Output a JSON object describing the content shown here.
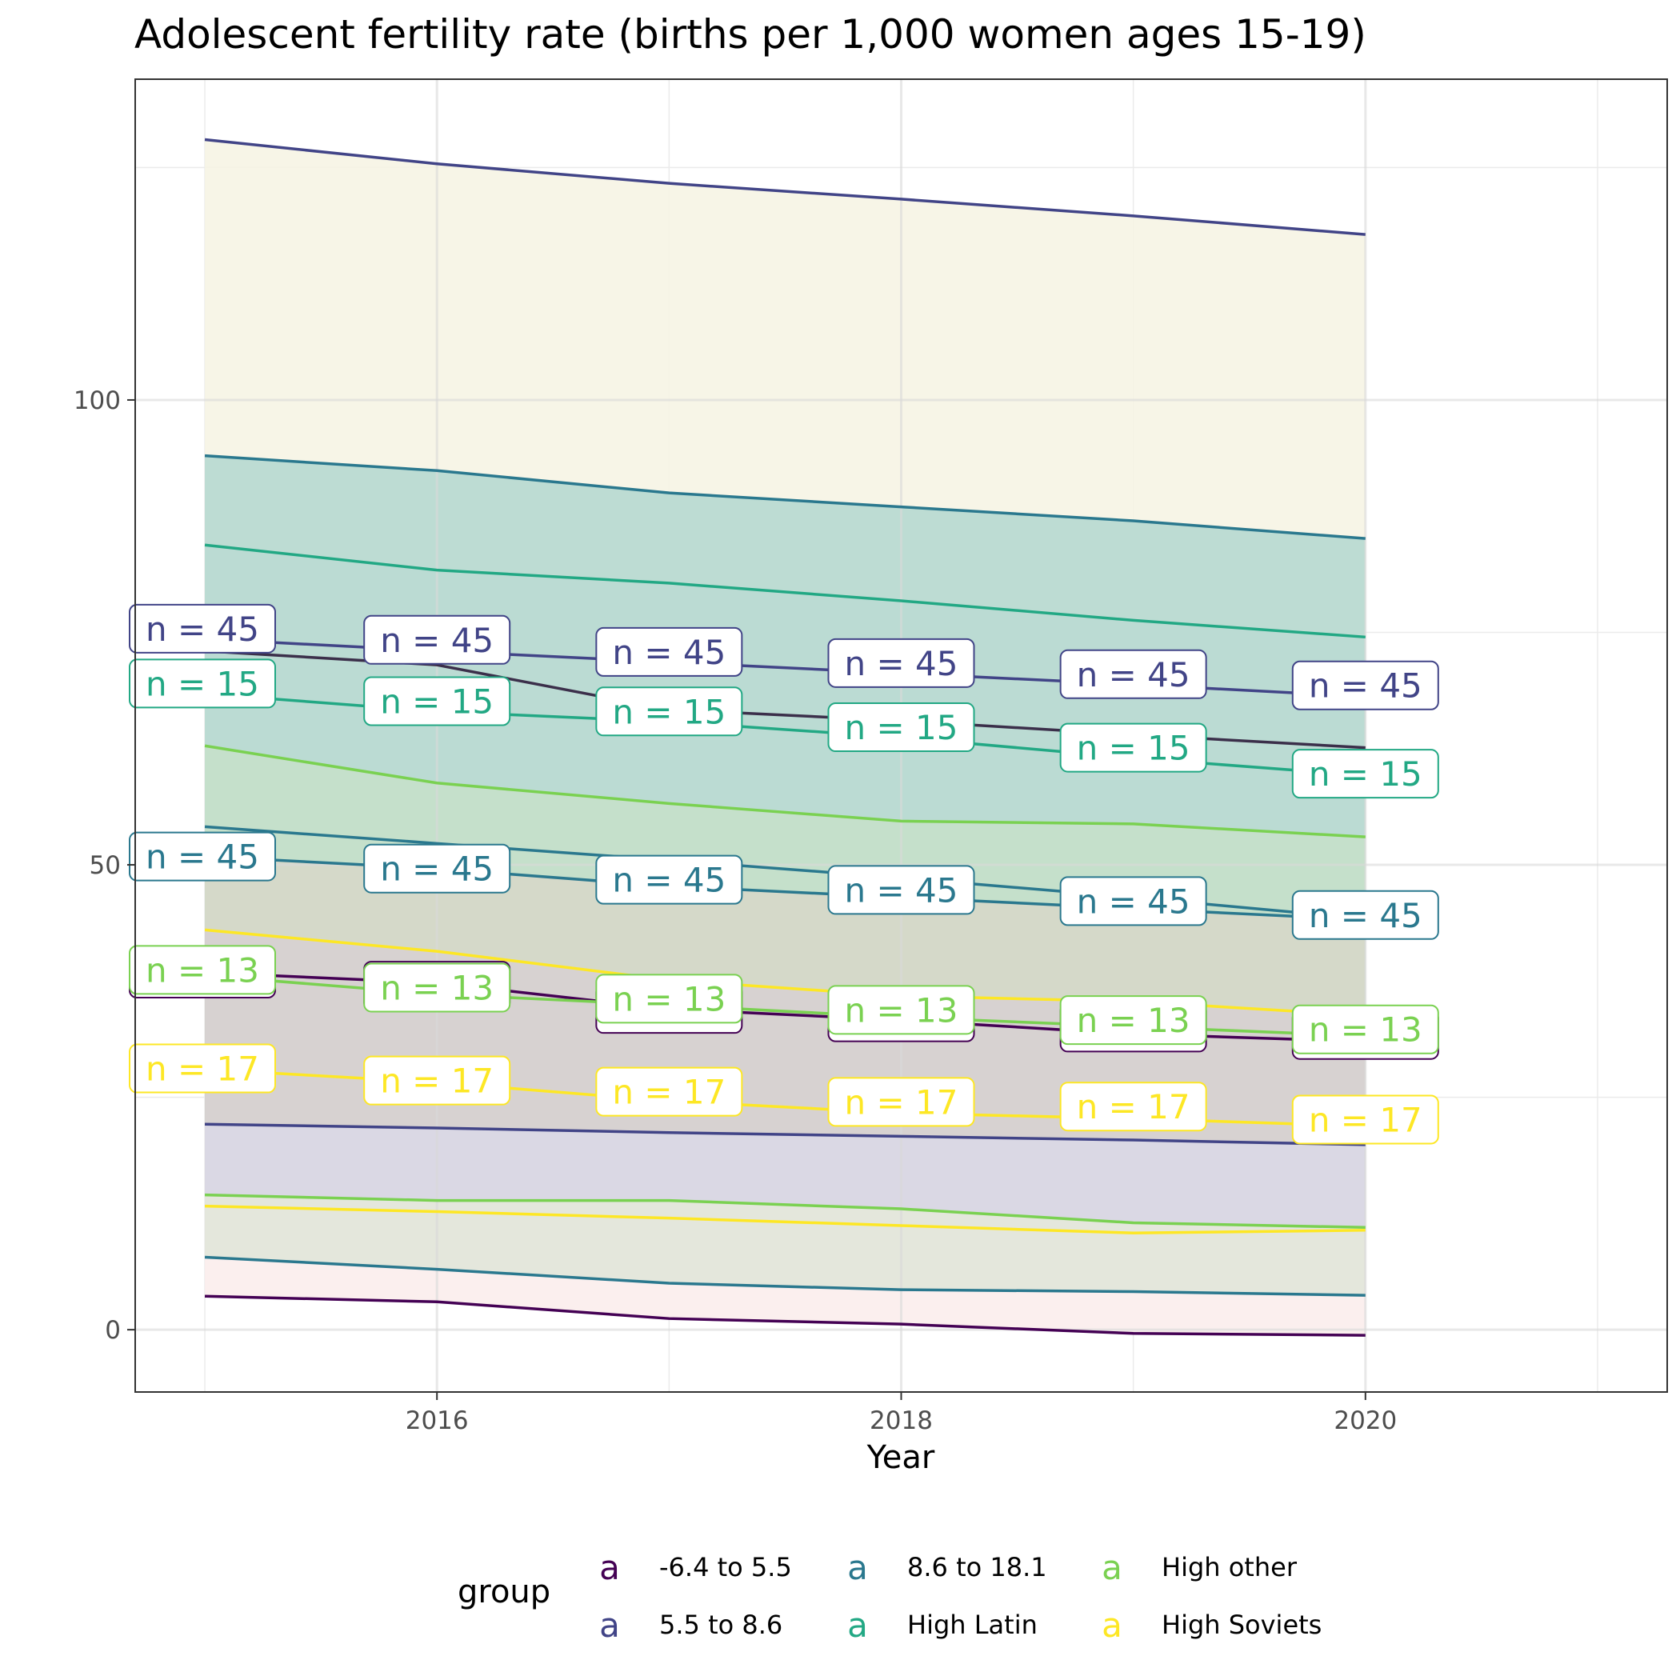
{
  "chart_data": {
    "type": "area",
    "title": "Adolescent fertility rate (births per 1,000 women ages 15-19)",
    "xlabel": "Year",
    "ylabel": "",
    "xlim": [
      2014.7,
      2021.3
    ],
    "ylim": [
      -6.7,
      134.5
    ],
    "x_ticks": [
      2016,
      2018,
      2020
    ],
    "y_ticks": [
      0,
      50,
      100
    ],
    "x": [
      2015,
      2016,
      2017,
      2018,
      2019,
      2020
    ],
    "grid": true,
    "legend": {
      "title": "group",
      "position": "bottom",
      "key_glyph": "a",
      "entries": [
        {
          "label": "-6.4 to 5.5",
          "color": "#440154"
        },
        {
          "label": "5.5 to 8.6",
          "color": "#414487"
        },
        {
          "label": "8.6 to 18.1",
          "color": "#2A788E"
        },
        {
          "label": "High Latin",
          "color": "#22A884"
        },
        {
          "label": "High other",
          "color": "#7AD151"
        },
        {
          "label": "High Soviets",
          "color": "#FDE725"
        }
      ]
    },
    "bands": [
      {
        "group": "5.5 to 8.6",
        "fill": "#f6f4e4",
        "upper": "s2_upper",
        "lower": "s1_lower"
      },
      {
        "group": "8.6 to 18.1",
        "fill": "#dfeed6",
        "upper": "s3_upper",
        "lower": "s1_lower"
      },
      {
        "group": "High Latin",
        "fill": "#c5e9d7",
        "upper": "s4_upper",
        "lower": "s1_lower"
      },
      {
        "group": "High other",
        "fill": "#c4dfca",
        "upper": "s5_upper",
        "lower": "s1_lower"
      },
      {
        "group": "8.6 to 18.1 (lower)",
        "fill": "#b9d9d3",
        "upper": "s5_upper",
        "lower": "s3_upper"
      },
      {
        "group": "High Soviets",
        "fill": "#d6d8c9",
        "upper": "s3_mid",
        "lower": "s1_lower"
      },
      {
        "group": "-6.4 to 5.5",
        "fill": "#d7d0d1",
        "upper": "s6_upper",
        "lower": "s1_lower"
      },
      {
        "group": "5.5 to 8.6 (lower)",
        "fill": "#dad8e6",
        "upper": "s2_lower",
        "lower": "s1_lower"
      },
      {
        "group": "High other (lower)",
        "fill": "#e4e9da",
        "upper": "s5_lower",
        "lower": "s1_lower"
      },
      {
        "group": "-6.4 to 5.5 (lower)",
        "fill": "#fdf0f0",
        "upper": "s3_lower",
        "lower": "s1_lower"
      }
    ],
    "series": [
      {
        "id": "s2_upper",
        "group": "5.5 to 8.6",
        "color": "#414487",
        "values": [
          128.0,
          125.4,
          123.3,
          121.6,
          119.8,
          117.8
        ]
      },
      {
        "id": "s3_upper",
        "group": "8.6 to 18.1",
        "color": "#2A788E",
        "values": [
          94.0,
          92.4,
          90.0,
          88.5,
          87.0,
          85.1
        ]
      },
      {
        "id": "s4_upper",
        "group": "High Latin",
        "color": "#22A884",
        "values": [
          84.4,
          81.7,
          80.3,
          78.4,
          76.3,
          74.5
        ]
      },
      {
        "id": "s1_mid",
        "group": "-6.4 to 5.5",
        "color": "#3b2f4a",
        "values": [
          73.0,
          71.5,
          66.7,
          65.5,
          64.0,
          62.6
        ]
      },
      {
        "id": "s2_mid",
        "group": "5.5 to 8.6",
        "color": "#414487",
        "values": [
          74.3,
          73.0,
          71.8,
          70.6,
          69.4,
          68.1
        ]
      },
      {
        "id": "s4_mid",
        "group": "High Latin",
        "color": "#22A884",
        "values": [
          68.4,
          66.5,
          65.4,
          63.7,
          61.5,
          59.6
        ]
      },
      {
        "id": "s5_upper",
        "group": "High other",
        "color": "#7AD151",
        "values": [
          62.8,
          58.8,
          56.6,
          54.7,
          54.4,
          53.0
        ]
      },
      {
        "id": "s3_upper2",
        "group": "8.6 to 18.1",
        "color": "#2A788E",
        "values": [
          54.1,
          52.3,
          50.5,
          48.6,
          46.5,
          44.2
        ]
      },
      {
        "id": "s3_mid",
        "group": "8.6 to 18.1",
        "color": "#2A788E",
        "values": [
          50.9,
          49.6,
          47.7,
          46.5,
          45.3,
          44.1
        ]
      },
      {
        "id": "s6_upper",
        "group": "High Soviets",
        "color": "#FDE725",
        "values": [
          43.0,
          40.7,
          37.6,
          35.9,
          35.3,
          33.8
        ]
      },
      {
        "id": "s1_mid2",
        "group": "-6.4 to 5.5",
        "color": "#440154",
        "values": [
          38.4,
          37.3,
          34.5,
          33.3,
          31.8,
          31.0
        ]
      },
      {
        "id": "s5_mid",
        "group": "High other",
        "color": "#7AD151",
        "values": [
          38.1,
          36.1,
          34.9,
          33.6,
          32.6,
          31.6
        ]
      },
      {
        "id": "s6_mid",
        "group": "High Soviets",
        "color": "#FDE725",
        "values": [
          28.0,
          26.6,
          24.6,
          23.3,
          22.7,
          21.9
        ]
      },
      {
        "id": "s2_lower",
        "group": "5.5 to 8.6",
        "color": "#414487",
        "values": [
          22.1,
          21.7,
          21.2,
          20.8,
          20.4,
          19.9
        ]
      },
      {
        "id": "s5_lower",
        "group": "High other",
        "color": "#7AD151",
        "values": [
          14.5,
          13.9,
          13.9,
          13.0,
          11.5,
          11.0
        ]
      },
      {
        "id": "s6_lower",
        "group": "High Soviets",
        "color": "#FDE725",
        "values": [
          13.3,
          12.7,
          12.0,
          11.2,
          10.4,
          10.7
        ]
      },
      {
        "id": "s3_lower",
        "group": "8.6 to 18.1",
        "color": "#2A788E",
        "values": [
          7.8,
          6.5,
          5.0,
          4.3,
          4.1,
          3.7
        ]
      },
      {
        "id": "s1_lower",
        "group": "-6.4 to 5.5",
        "color": "#440154",
        "values": [
          3.6,
          3.0,
          1.2,
          0.6,
          -0.4,
          -0.6
        ]
      }
    ],
    "annotations": [
      {
        "text": "n = 45",
        "group": "5.5 to 8.6",
        "color": "#414487",
        "y": [
          75.4,
          74.2,
          72.9,
          71.7,
          70.5,
          69.3
        ]
      },
      {
        "text": "n = 15",
        "group": "High Latin",
        "color": "#22A884",
        "y": [
          69.5,
          67.6,
          66.5,
          64.8,
          62.6,
          59.8
        ]
      },
      {
        "text": "n = 45",
        "group": "8.6 to 18.1",
        "color": "#2A788E",
        "y": [
          50.9,
          49.6,
          48.4,
          47.3,
          46.1,
          44.6
        ]
      },
      {
        "text": "",
        "group": "-6.4 to 5.5",
        "color": "#440154",
        "y": [
          38.3,
          37.0,
          34.5,
          33.6,
          32.5,
          31.7
        ]
      },
      {
        "text": "n = 13",
        "group": "High other",
        "color": "#7AD151",
        "y": [
          38.7,
          36.8,
          35.6,
          34.4,
          33.3,
          32.3
        ]
      },
      {
        "text": "n = 17",
        "group": "High Soviets",
        "color": "#FDE725",
        "y": [
          28.1,
          26.8,
          25.6,
          24.5,
          24.0,
          22.6
        ]
      }
    ]
  }
}
